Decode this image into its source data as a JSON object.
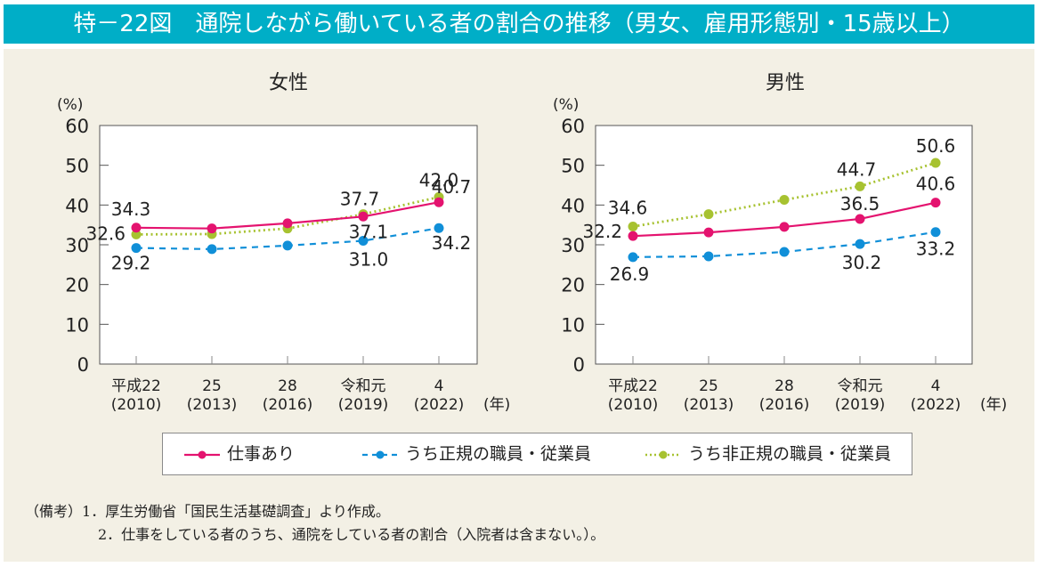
{
  "figure_title": "特－22図　通院しながら働いている者の割合の推移（男女、雇用形態別・15歳以上）",
  "colors": {
    "title_bar": "#00aec7",
    "panel_bg": "#f3f0e5",
    "series_work": "#e4136f",
    "series_regular": "#108fd8",
    "series_nonregular": "#a7c230"
  },
  "legend": [
    {
      "key": "work",
      "label": "仕事あり",
      "style": "solid"
    },
    {
      "key": "regular",
      "label": "うち正規の職員・従業員",
      "style": "dashed"
    },
    {
      "key": "nonregular",
      "label": "うち非正規の職員・従業員",
      "style": "dotted"
    }
  ],
  "notes": {
    "prefix": "（備考）",
    "items": [
      "1．厚生労働省「国民生活基礎調査」より作成。",
      "2．仕事をしている者のうち、通院をしている者の割合（入院者は含まない。）。"
    ]
  },
  "chart_data": [
    {
      "type": "line",
      "title": "女性",
      "ylabel": "(%)",
      "xlabel_unit": "(年)",
      "ylim": [
        0,
        60
      ],
      "yticks": [
        0,
        10,
        20,
        30,
        40,
        50,
        60
      ],
      "categories": [
        {
          "line1": "平成22",
          "line2": "(2010)"
        },
        {
          "line1": "25",
          "line2": "(2013)"
        },
        {
          "line1": "28",
          "line2": "(2016)"
        },
        {
          "line1": "令和元",
          "line2": "(2019)"
        },
        {
          "line1": "4",
          "line2": "(2022)"
        }
      ],
      "grid": false,
      "series": [
        {
          "key": "work",
          "name": "仕事あり",
          "values": [
            34.3,
            34.1,
            35.4,
            37.1,
            40.7
          ],
          "labels": [
            "34.3",
            null,
            null,
            "37.1",
            "40.7"
          ]
        },
        {
          "key": "regular",
          "name": "うち正規の職員・従業員",
          "values": [
            29.2,
            28.9,
            29.8,
            31.0,
            34.2
          ],
          "labels": [
            "29.2",
            null,
            null,
            "31.0",
            "34.2"
          ]
        },
        {
          "key": "nonregular",
          "name": "うち非正規の職員・従業員",
          "values": [
            32.6,
            32.7,
            34.1,
            37.7,
            42.0
          ],
          "labels": [
            "32.6",
            null,
            null,
            "37.7",
            "42.0"
          ]
        }
      ]
    },
    {
      "type": "line",
      "title": "男性",
      "ylabel": "(%)",
      "xlabel_unit": "(年)",
      "ylim": [
        0,
        60
      ],
      "yticks": [
        0,
        10,
        20,
        30,
        40,
        50,
        60
      ],
      "categories": [
        {
          "line1": "平成22",
          "line2": "(2010)"
        },
        {
          "line1": "25",
          "line2": "(2013)"
        },
        {
          "line1": "28",
          "line2": "(2016)"
        },
        {
          "line1": "令和元",
          "line2": "(2019)"
        },
        {
          "line1": "4",
          "line2": "(2022)"
        }
      ],
      "grid": false,
      "series": [
        {
          "key": "work",
          "name": "仕事あり",
          "values": [
            32.2,
            33.1,
            34.5,
            36.5,
            40.6
          ],
          "labels": [
            "32.2",
            null,
            null,
            "36.5",
            "40.6"
          ]
        },
        {
          "key": "regular",
          "name": "うち正規の職員・従業員",
          "values": [
            26.9,
            27.1,
            28.2,
            30.2,
            33.2
          ],
          "labels": [
            "26.9",
            null,
            null,
            "30.2",
            "33.2"
          ]
        },
        {
          "key": "nonregular",
          "name": "うち非正規の職員・従業員",
          "values": [
            34.6,
            37.7,
            41.3,
            44.7,
            50.6
          ],
          "labels": [
            "34.6",
            null,
            null,
            "44.7",
            "50.6"
          ]
        }
      ]
    }
  ]
}
